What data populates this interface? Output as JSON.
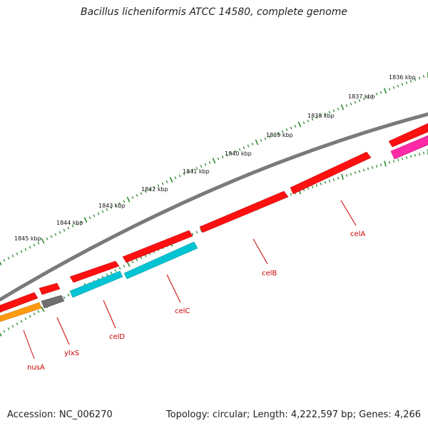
{
  "title": "Bacillus licheniformis ATCC 14580, complete genome",
  "footer": {
    "accession": "Accession: NC_006270",
    "summary": "Topology: circular; Length: 4,222,597 bp; Genes: 4,266"
  },
  "colors": {
    "backbone": "#808080",
    "tick_dot": "#2e8b2e",
    "gene_label": "#cc0000",
    "forward_gene": "#ff0000",
    "cyan_gene": "#00c8d8",
    "orange_gene": "#ff9900",
    "gray_gene": "#707070",
    "pink_gene": "#ff33aa"
  },
  "kbp_ticks": [
    "1836 kbp",
    "1837 kbp",
    "1838 kbp",
    "1839 kbp",
    "1840 kbp",
    "1841 kbp",
    "1842 kbp",
    "1843 kbp",
    "1844 kbp",
    "1845 kbp"
  ],
  "gene_labels": [
    "celA",
    "celB",
    "celC",
    "celD",
    "ylxS",
    "nusA"
  ]
}
